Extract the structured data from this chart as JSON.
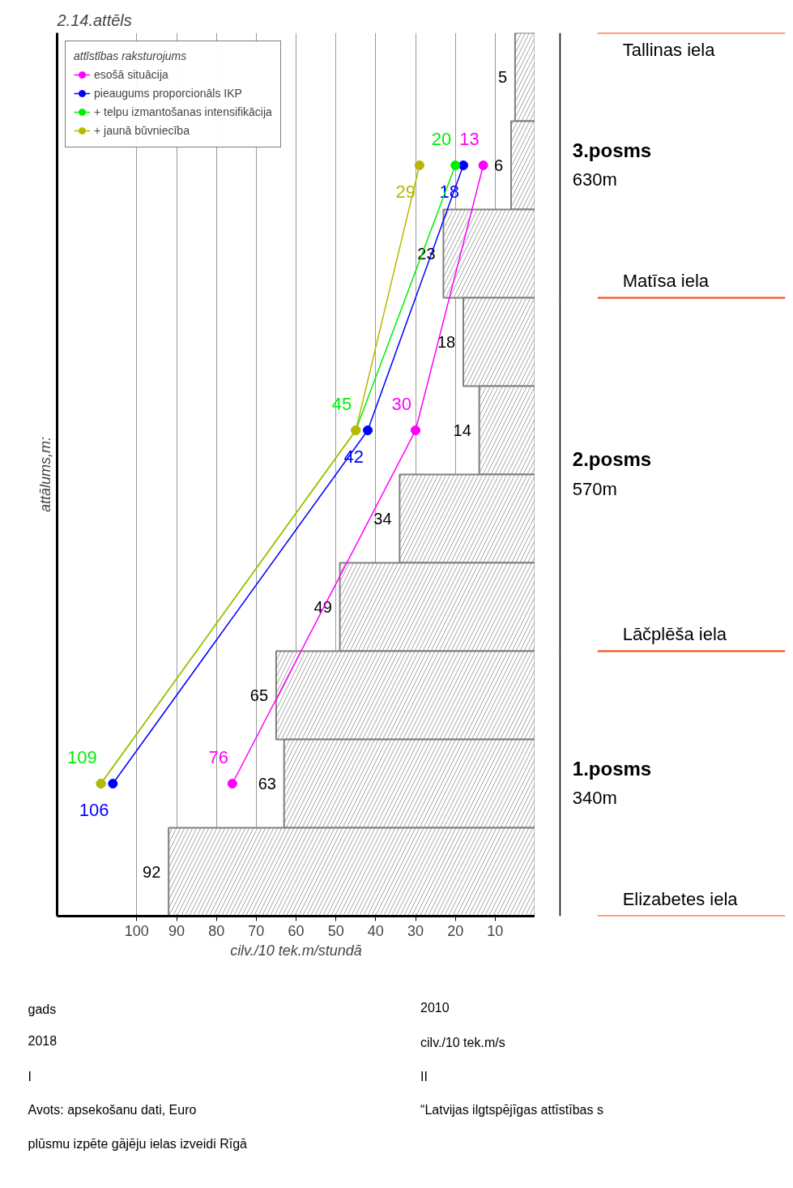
{
  "chart_data": {
    "type": "bar",
    "orientation": "horizontal",
    "title": "2.14.attēls",
    "xlabel": "cilv./10 tek.m/stundā",
    "ylabel": "attālums,m:",
    "legend_title": "attīstības raksturojums",
    "categories": [
      null,
      null,
      null,
      null,
      null,
      null,
      null,
      null,
      null,
      null
    ],
    "values": [
      5,
      6,
      23,
      18,
      14,
      34,
      49,
      65,
      63,
      92
    ],
    "color": "#808080",
    "data_labels": true,
    "series": [
      {
        "name": "esošā situācija",
        "type": "line",
        "color": "#ff00ff",
        "values": [
          null,
          13,
          null,
          null,
          30,
          null,
          null,
          null,
          76,
          null
        ],
        "value_labels": [
          null,
          "13",
          null,
          null,
          "30",
          null,
          null,
          null,
          "76",
          null
        ]
      },
      {
        "name": "pieaugums proporcionāls IKP",
        "type": "line",
        "color": "#0000ff",
        "values": [
          null,
          18,
          null,
          null,
          42,
          null,
          null,
          null,
          106,
          null
        ],
        "value_labels": [
          null,
          "18",
          null,
          null,
          "42",
          null,
          null,
          null,
          "106",
          null
        ]
      },
      {
        "name": "+ telpu izmantošanas intensifikācija",
        "type": "line",
        "color": "#00ee00",
        "values": [
          null,
          20,
          null,
          null,
          45,
          null,
          null,
          null,
          109,
          null
        ],
        "value_labels": [
          null,
          "20",
          null,
          null,
          "45",
          null,
          null,
          null,
          "109",
          null
        ]
      },
      {
        "name": "+ jaunā būvniecība",
        "type": "line",
        "color": "#b8b800",
        "values": [
          null,
          29,
          null,
          null,
          45,
          null,
          null,
          null,
          109,
          null
        ],
        "value_labels": [
          null,
          "29",
          null,
          null,
          null,
          null,
          null,
          null,
          null,
          null
        ]
      }
    ],
    "marker": "circle",
    "xlim": [
      120,
      0
    ],
    "xticks": [
      10,
      20,
      30,
      40,
      50,
      60,
      70,
      80,
      90,
      100
    ],
    "grid": "x",
    "legend": "top left",
    "tick_labels": "x",
    "annotations": [
      "Elizabetes iela",
      "Lāčplēša iela",
      "Matīsa iela",
      "Tallinas iela",
      "1.posms",
      "340m",
      "2.posms",
      "570m",
      "3.posms",
      "630m",
      "gads",
      "2010",
      "2018",
      "cilv./10 tek.m/s",
      "I",
      "II",
      "Avots: apsekošanu dati, Euro",
      "“Latvijas ilgtspējīgas attīstības s",
      "plūsmu izpēte gājēju ielas izveidi Rīgā"
    ]
  }
}
